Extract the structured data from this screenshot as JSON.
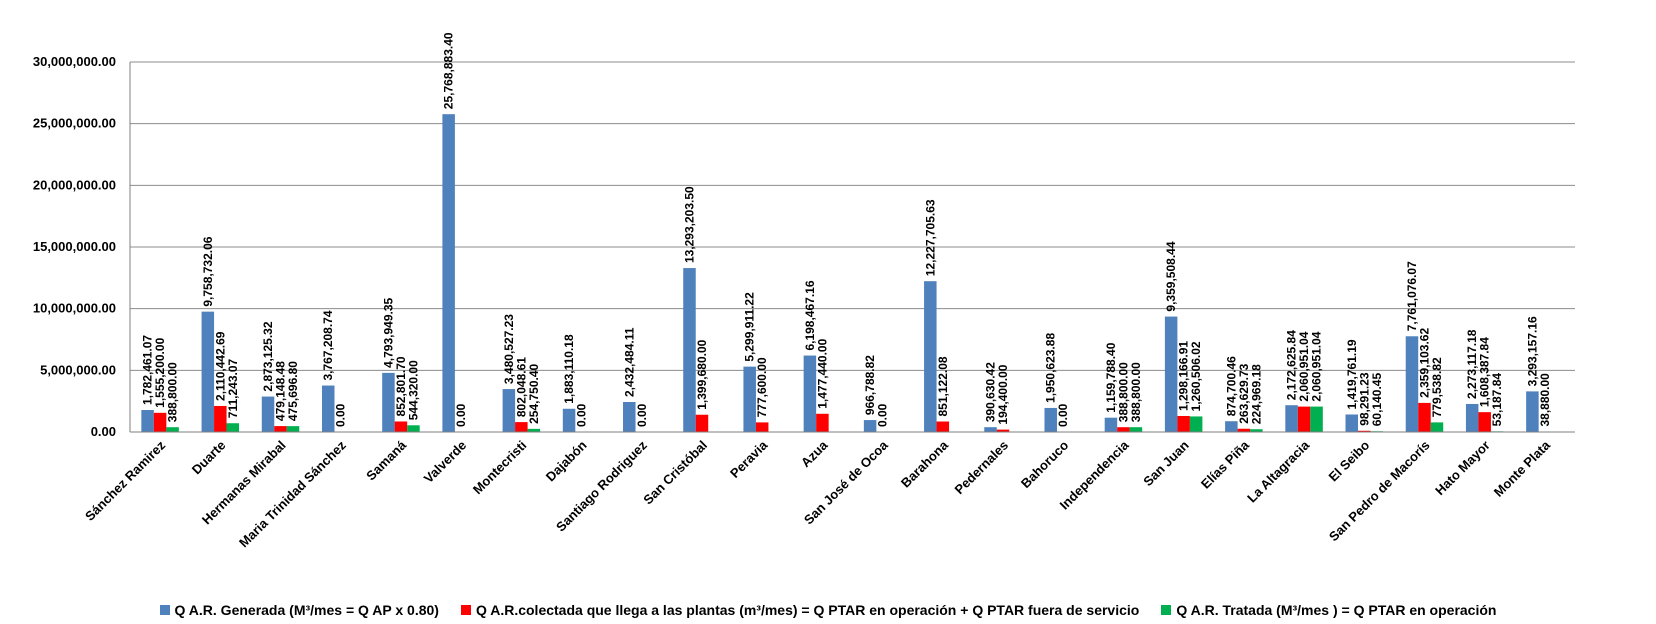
{
  "chart_data": {
    "type": "bar",
    "title": "",
    "xlabel": "",
    "ylabel": "",
    "ylim": [
      0,
      30000000
    ],
    "yticks": [
      0,
      5000000,
      10000000,
      15000000,
      20000000,
      25000000,
      30000000
    ],
    "ytick_labels": [
      "0.00",
      "5,000,000.00",
      "10,000,000.00",
      "15,000,000.00",
      "20,000,000.00",
      "25,000,000.00",
      "30,000,000.00"
    ],
    "grid": true,
    "legend_position": "bottom",
    "categories": [
      "Sánchez Ramirez",
      "Duarte",
      "Hermanas Mirabal",
      "Maria Trinidad Sánchez",
      "Samaná",
      "Valverde",
      "Montecristi",
      "Dajabón",
      "Santiago Rodriguez",
      "San Cristóbal",
      "Peravia",
      "Azua",
      "San José de Ocoa",
      "Barahona",
      "Pedernales",
      "Bahoruco",
      "Independencia",
      "San Juan",
      "Elías Piña",
      "La Altagracia",
      "El Seibo",
      "San Pedro de Macorís",
      "Hato Mayor",
      "Monte Plata"
    ],
    "series": [
      {
        "name": "Q A.R. Generada (M³/mes = Q AP x 0.80)",
        "color": "#4F81BD",
        "values": [
          1782461.07,
          9758732.06,
          2873125.32,
          3767208.74,
          4793949.35,
          25768883.4,
          3480527.23,
          1883110.18,
          2432484.11,
          13293203.5,
          5299911.22,
          6198467.16,
          966788.82,
          12227705.63,
          390630.42,
          1950623.88,
          1159788.4,
          9359508.44,
          874700.46,
          2172625.84,
          1419761.19,
          7761076.07,
          2273117.18,
          3293157.16
        ],
        "labels": [
          "1,782,461.07",
          "9,758,732.06",
          "2,873,125.32",
          "3,767,208.74",
          "4,793,949.35",
          "25,768,883.40",
          "3,480,527.23",
          "1,883,110.18",
          "2,432,484.11",
          "13,293,203.50",
          "5,299,911.22",
          "6,198,467.16",
          "966,788.82",
          "12,227,705.63",
          "390,630.42",
          "1,950,623.88",
          "1,159,788.40",
          "9,359,508.44",
          "874,700.46",
          "2,172,625.84",
          "1,419,761.19",
          "7,761,076.07",
          "2,273,117.18",
          "3,293,157.16"
        ]
      },
      {
        "name": "Q A.R.colectada que llega a las plantas  (m³/mes) = Q PTAR en operación + Q PTAR fuera de servicio",
        "color": "#FF0000",
        "values": [
          1555200.0,
          2110442.69,
          479148.48,
          0,
          852801.7,
          0,
          802048.61,
          0,
          0,
          1399680.0,
          777600.0,
          1477440.0,
          0,
          851122.08,
          194400.0,
          0,
          388800.0,
          1298166.91,
          263629.73,
          2060951.04,
          98291.23,
          2359103.62,
          1608387.84,
          38880.0
        ],
        "labels": [
          "1,555,200.00",
          "2,110,442.69",
          "479,148.48",
          "0.00",
          "852,801.70",
          "0.00",
          "802,048.61",
          "0.00",
          "0.00",
          "1,399,680.00",
          "777,600.00",
          "1,477,440.00",
          "0.00",
          "851,122.08",
          "194,400.00",
          "0.00",
          "388,800.00",
          "1,298,166.91",
          "263,629.73",
          "2,060,951.04",
          "98,291.23",
          "2,359,103.62",
          "1,608,387.84",
          "38,880.00"
        ]
      },
      {
        "name": "Q A.R. Tratada (M³/mes ) = Q PTAR en operación",
        "color": "#00B050",
        "values": [
          388800.0,
          711243.07,
          475696.8,
          0,
          544320.0,
          0,
          254750.4,
          0,
          0,
          0,
          0,
          0,
          0,
          0,
          0,
          0,
          388800.0,
          1260506.02,
          224969.18,
          2060951.04,
          60140.45,
          779538.82,
          53187.84,
          0
        ],
        "labels": [
          "388,800.00",
          "711,243.07",
          "475,696.80",
          "",
          "544,320.00",
          "",
          "254,750.40",
          "",
          "",
          "",
          "",
          "",
          "",
          "",
          "",
          "",
          "388,800.00",
          "1,260,506.02",
          "224,969.18",
          "2,060,951.04",
          "60,140.45",
          "779,538.82",
          "53,187.84",
          ""
        ]
      }
    ]
  }
}
